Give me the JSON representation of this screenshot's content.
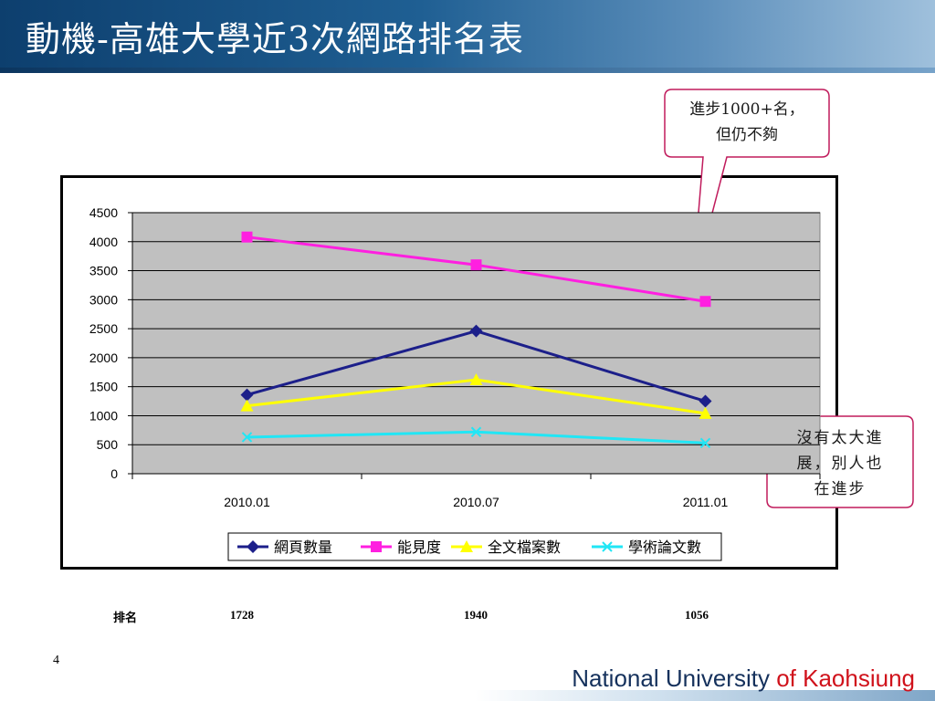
{
  "slide": {
    "title": "動機-高雄大學近3次網路排名表",
    "page_number": "4",
    "footer_part1": "National University ",
    "footer_part2": "of Kaohsiung"
  },
  "callouts": {
    "top": "進步1000+名，但仍不夠",
    "top_line1": "進步1000+名，",
    "top_line2": "但仍不夠",
    "right_line1": "沒有太大進",
    "right_line2": "展，別人也",
    "right_line3": "在進步"
  },
  "ranking": {
    "label": "排名",
    "values": [
      "1728",
      "1940",
      "1056"
    ]
  },
  "chart_data": {
    "type": "line",
    "categories": [
      "2010.01",
      "2010.07",
      "2011.01"
    ],
    "ylim": [
      0,
      4500
    ],
    "yticks": [
      0,
      500,
      1000,
      1500,
      2000,
      2500,
      3000,
      3500,
      4000,
      4500
    ],
    "grid": true,
    "legend_position": "bottom",
    "series": [
      {
        "name": "網頁數量",
        "values": [
          1360,
          2460,
          1250
        ],
        "color": "#1c1f8a",
        "marker": "diamond"
      },
      {
        "name": "能見度",
        "values": [
          4080,
          3600,
          2970
        ],
        "color": "#ff1fe0",
        "marker": "square"
      },
      {
        "name": "全文檔案數",
        "values": [
          1170,
          1620,
          1040
        ],
        "color": "#ffff00",
        "marker": "triangle"
      },
      {
        "name": "學術論文數",
        "values": [
          630,
          720,
          530
        ],
        "color": "#21e6f5",
        "marker": "x"
      }
    ]
  },
  "colors": {
    "plot_bg": "#c0c0c0",
    "callout_border": "#c01b5c"
  }
}
